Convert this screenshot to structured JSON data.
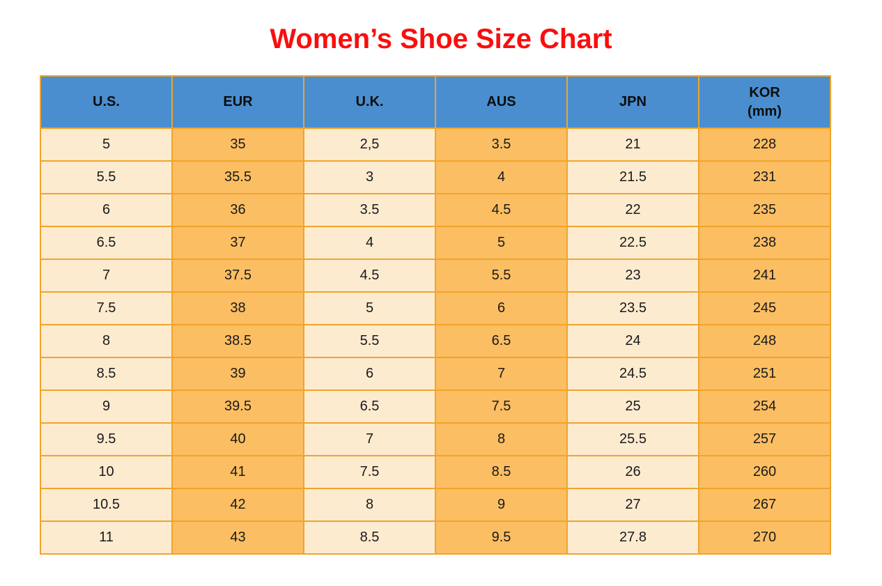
{
  "title": "Women’s Shoe Size Chart",
  "colors": {
    "title_text": "#FC0D0D",
    "header_bg": "#4A8ECF",
    "header_text": "#0D0D0D",
    "border": "#F0A42A",
    "column_light": "#FDEBD0",
    "column_orange": "#FCBE63",
    "cell_text": "#1A1A1A"
  },
  "chart_data": {
    "type": "table",
    "title": "Women’s Shoe Size Chart",
    "columns": [
      "U.S.",
      "EUR",
      "U.K.",
      "AUS",
      "JPN",
      "KOR (mm)"
    ],
    "header_lines": [
      [
        "U.S."
      ],
      [
        "EUR"
      ],
      [
        "U.K."
      ],
      [
        "AUS"
      ],
      [
        "JPN"
      ],
      [
        "KOR",
        "(mm)"
      ]
    ],
    "rows": [
      [
        "5",
        "35",
        "2,5",
        "3.5",
        "21",
        "228"
      ],
      [
        "5.5",
        "35.5",
        "3",
        "4",
        "21.5",
        "231"
      ],
      [
        "6",
        "36",
        "3.5",
        "4.5",
        "22",
        "235"
      ],
      [
        "6.5",
        "37",
        "4",
        "5",
        "22.5",
        "238"
      ],
      [
        "7",
        "37.5",
        "4.5",
        "5.5",
        "23",
        "241"
      ],
      [
        "7.5",
        "38",
        "5",
        "6",
        "23.5",
        "245"
      ],
      [
        "8",
        "38.5",
        "5.5",
        "6.5",
        "24",
        "248"
      ],
      [
        "8.5",
        "39",
        "6",
        "7",
        "24.5",
        "251"
      ],
      [
        "9",
        "39.5",
        "6.5",
        "7.5",
        "25",
        "254"
      ],
      [
        "9.5",
        "40",
        "7",
        "8",
        "25.5",
        "257"
      ],
      [
        "10",
        "41",
        "7.5",
        "8.5",
        "26",
        "260"
      ],
      [
        "10.5",
        "42",
        "8",
        "9",
        "27",
        "267"
      ],
      [
        "11",
        "43",
        "8.5",
        "9.5",
        "27.8",
        "270"
      ]
    ]
  }
}
